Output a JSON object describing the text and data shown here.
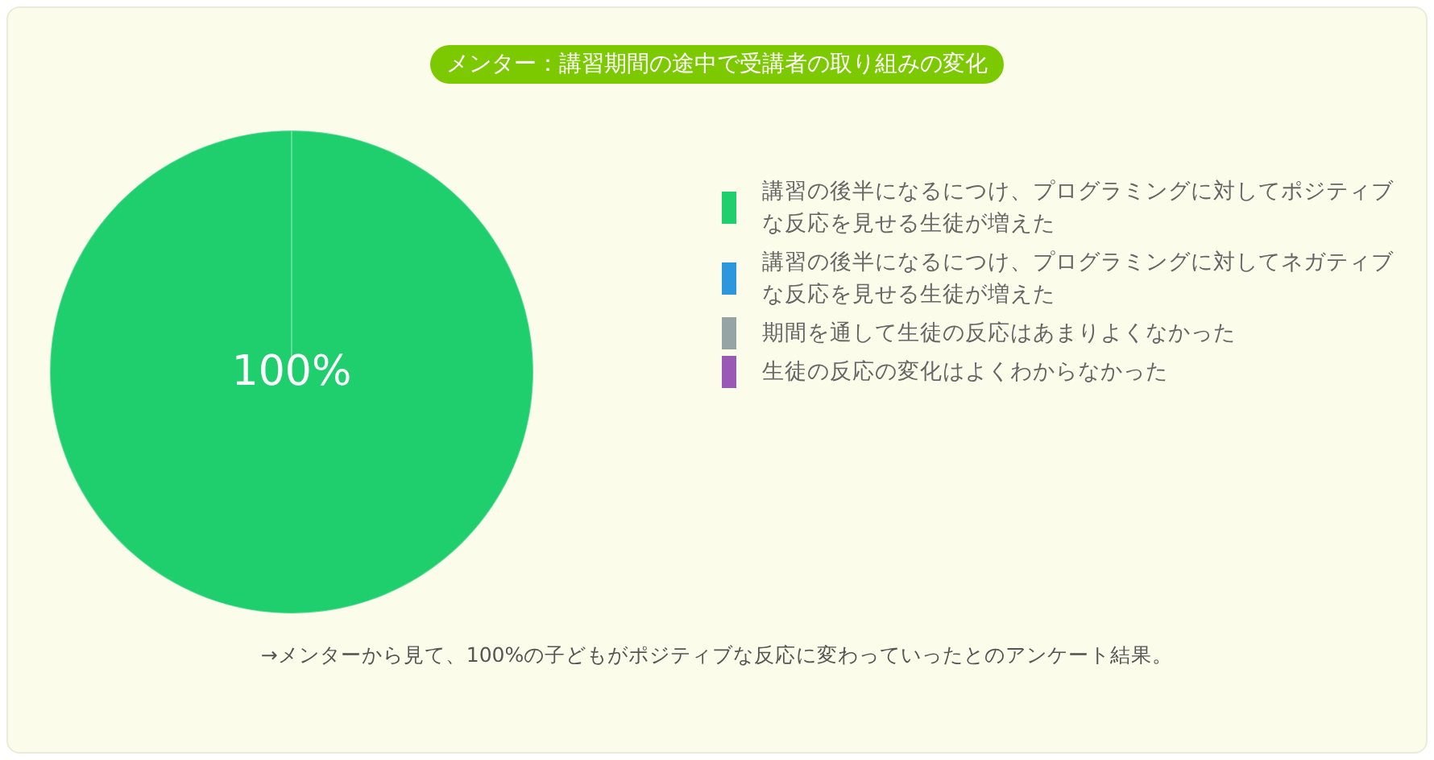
{
  "chart_data": {
    "type": "pie",
    "title": "メンター：講習期間の途中で受講者の取り組みの変化",
    "categories": [
      "講習の後半になるにつけ、プログラミングに対してポジティブな反応を見せる生徒が増えた",
      "講習の後半になるにつけ、プログラミングに対してネガティブな反応を見せる生徒が増えた",
      "期間を通して生徒の反応はあまりよくなかった",
      "生徒の反応の変化はよくわからなかった"
    ],
    "values": [
      100,
      0,
      0,
      0
    ],
    "colors": [
      "#1fce6d",
      "#2d97de",
      "#95a5a6",
      "#9b59b6"
    ],
    "value_labels": [
      "100%",
      null,
      null,
      null
    ],
    "legend": "right",
    "annotations": [
      "→メンターから見て、100%の子どもがポジティブな反応に変わっていったとのアンケート結果。"
    ]
  }
}
